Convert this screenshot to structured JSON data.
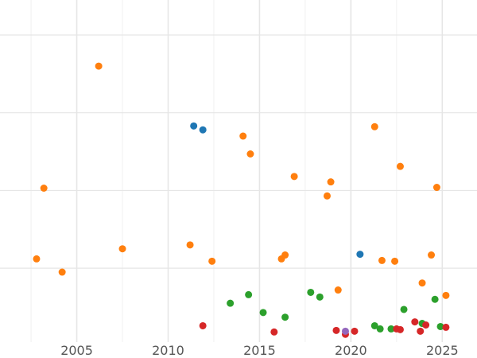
{
  "chart_data": {
    "type": "scatter",
    "title": "",
    "xlabel": "",
    "ylabel": "",
    "xlim": [
      2000.8,
      2026.9
    ],
    "ylim": [
      0,
      4.4
    ],
    "grid": true,
    "x_ticks": [
      2005,
      2010,
      2015,
      2020,
      2025
    ],
    "x_tick_labels": [
      "2005",
      "2010",
      "2015",
      "2020",
      "2025"
    ],
    "y_gridlines": [
      0.95,
      1.95,
      2.95,
      3.95
    ],
    "series": [
      {
        "name": "orange",
        "color": "#ff7f0e",
        "points": [
          {
            "x": 2006.2,
            "y": 3.55
          },
          {
            "x": 2003.2,
            "y": 1.98
          },
          {
            "x": 2002.8,
            "y": 1.07
          },
          {
            "x": 2004.2,
            "y": 0.9
          },
          {
            "x": 2007.5,
            "y": 1.2
          },
          {
            "x": 2011.2,
            "y": 1.25
          },
          {
            "x": 2012.4,
            "y": 1.04
          },
          {
            "x": 2014.1,
            "y": 2.65
          },
          {
            "x": 2014.5,
            "y": 2.42
          },
          {
            "x": 2016.2,
            "y": 1.07
          },
          {
            "x": 2016.4,
            "y": 1.12
          },
          {
            "x": 2016.9,
            "y": 2.13
          },
          {
            "x": 2018.7,
            "y": 1.88
          },
          {
            "x": 2018.9,
            "y": 2.06
          },
          {
            "x": 2019.3,
            "y": 0.67
          },
          {
            "x": 2021.3,
            "y": 2.77
          },
          {
            "x": 2021.7,
            "y": 1.05
          },
          {
            "x": 2022.4,
            "y": 1.04
          },
          {
            "x": 2022.7,
            "y": 2.26
          },
          {
            "x": 2023.9,
            "y": 0.76
          },
          {
            "x": 2024.4,
            "y": 1.12
          },
          {
            "x": 2024.7,
            "y": 1.99
          },
          {
            "x": 2025.2,
            "y": 0.6
          }
        ]
      },
      {
        "name": "blue",
        "color": "#1f77b4",
        "points": [
          {
            "x": 2011.4,
            "y": 2.78
          },
          {
            "x": 2011.9,
            "y": 2.73
          },
          {
            "x": 2020.5,
            "y": 1.13
          }
        ]
      },
      {
        "name": "green",
        "color": "#2ca02c",
        "points": [
          {
            "x": 2013.4,
            "y": 0.5
          },
          {
            "x": 2014.4,
            "y": 0.61
          },
          {
            "x": 2015.2,
            "y": 0.38
          },
          {
            "x": 2016.4,
            "y": 0.32
          },
          {
            "x": 2017.8,
            "y": 0.64
          },
          {
            "x": 2018.3,
            "y": 0.58
          },
          {
            "x": 2021.3,
            "y": 0.21
          },
          {
            "x": 2021.6,
            "y": 0.17
          },
          {
            "x": 2022.2,
            "y": 0.17
          },
          {
            "x": 2022.9,
            "y": 0.42
          },
          {
            "x": 2023.9,
            "y": 0.24
          },
          {
            "x": 2024.6,
            "y": 0.55
          },
          {
            "x": 2024.9,
            "y": 0.2
          }
        ]
      },
      {
        "name": "red",
        "color": "#d62728",
        "points": [
          {
            "x": 2011.9,
            "y": 0.21
          },
          {
            "x": 2015.8,
            "y": 0.13
          },
          {
            "x": 2019.2,
            "y": 0.15
          },
          {
            "x": 2019.7,
            "y": 0.1
          },
          {
            "x": 2020.2,
            "y": 0.14
          },
          {
            "x": 2022.5,
            "y": 0.17
          },
          {
            "x": 2022.7,
            "y": 0.16
          },
          {
            "x": 2023.5,
            "y": 0.26
          },
          {
            "x": 2023.8,
            "y": 0.14
          },
          {
            "x": 2024.1,
            "y": 0.22
          },
          {
            "x": 2025.2,
            "y": 0.19
          }
        ]
      },
      {
        "name": "purple",
        "color": "#9467bd",
        "points": [
          {
            "x": 2019.7,
            "y": 0.14
          }
        ]
      }
    ]
  }
}
